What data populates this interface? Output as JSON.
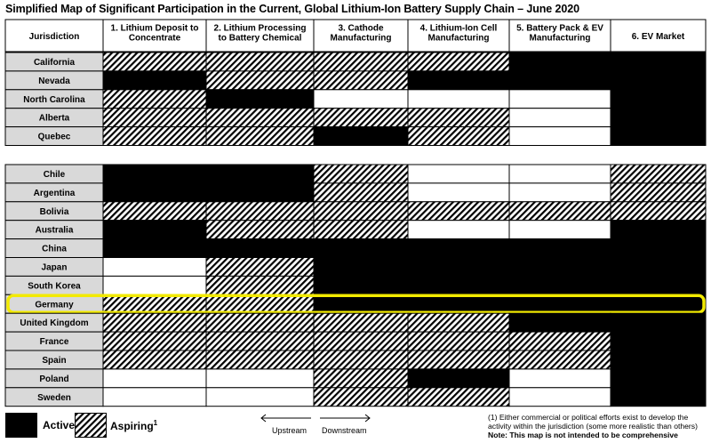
{
  "title": "Simplified Map of Significant Participation in the Current, Global Lithium-Ion Battery Supply Chain – June 2020",
  "header": {
    "jurisdiction": "Jurisdiction",
    "stages": [
      [
        "1. Lithium Deposit to",
        "Concentrate"
      ],
      [
        "2. Lithium Processing",
        "to Battery Chemical"
      ],
      [
        "3. Cathode",
        "Manufacturing"
      ],
      [
        "4. Lithium-Ion Cell",
        "Manufacturing"
      ],
      [
        "5. Battery Pack & EV",
        "Manufacturing"
      ],
      [
        "6. EV Market"
      ]
    ]
  },
  "colors": {
    "active": "#000000",
    "none": "#ffffff",
    "highlight": "#f2ea00",
    "row_label_bg": "#d9d9d9"
  },
  "groups": [
    [
      {
        "name": "California",
        "cells": [
          "H",
          "H",
          "H",
          "H",
          "A",
          "A"
        ]
      },
      {
        "name": "Nevada",
        "cells": [
          "A",
          "H",
          "H",
          "A",
          "A",
          "A"
        ]
      },
      {
        "name": "North Carolina",
        "cells": [
          "H",
          "A",
          "N",
          "N",
          "N",
          "A"
        ]
      },
      {
        "name": "Alberta",
        "cells": [
          "H",
          "H",
          "H",
          "H",
          "N",
          "A"
        ]
      },
      {
        "name": "Quebec",
        "cells": [
          "H",
          "H",
          "A",
          "H",
          "N",
          "A"
        ]
      }
    ],
    [
      {
        "name": "Chile",
        "cells": [
          "A",
          "A",
          "H",
          "N",
          "N",
          "H"
        ]
      },
      {
        "name": "Argentina",
        "cells": [
          "A",
          "A",
          "H",
          "N",
          "N",
          "H"
        ]
      },
      {
        "name": "Bolivia",
        "cells": [
          "H",
          "H",
          "H",
          "H",
          "H",
          "H"
        ]
      },
      {
        "name": "Australia",
        "cells": [
          "A",
          "H",
          "H",
          "N",
          "N",
          "A"
        ]
      },
      {
        "name": "China",
        "cells": [
          "A",
          "A",
          "A",
          "A",
          "A",
          "A"
        ]
      },
      {
        "name": "Japan",
        "cells": [
          "N",
          "H",
          "A",
          "A",
          "A",
          "A"
        ]
      },
      {
        "name": "South Korea",
        "cells": [
          "N",
          "H",
          "A",
          "A",
          "A",
          "A"
        ]
      },
      {
        "name": "Germany",
        "cells": [
          "H",
          "H",
          "A",
          "A",
          "A",
          "A"
        ],
        "highlight": true
      },
      {
        "name": "United Kingdom",
        "cells": [
          "H",
          "H",
          "H",
          "H",
          "A",
          "A"
        ]
      },
      {
        "name": "France",
        "cells": [
          "H",
          "H",
          "H",
          "H",
          "H",
          "A"
        ]
      },
      {
        "name": "Spain",
        "cells": [
          "H",
          "H",
          "H",
          "H",
          "H",
          "A"
        ]
      },
      {
        "name": "Poland",
        "cells": [
          "N",
          "N",
          "H",
          "A",
          "N",
          "A"
        ]
      },
      {
        "name": "Sweden",
        "cells": [
          "N",
          "N",
          "H",
          "H",
          "N",
          "A"
        ]
      }
    ]
  ],
  "legend": {
    "active": "Active",
    "aspiring": "Aspiring",
    "aspiring_sup": "1",
    "upstream": "Upstream",
    "downstream": "Downstream"
  },
  "footnote": "(1) Either commercial or political efforts exist to develop the activity within the jurisdiction (some more realistic than others)",
  "note": "Note: This map is not intended to be comprehensive"
}
